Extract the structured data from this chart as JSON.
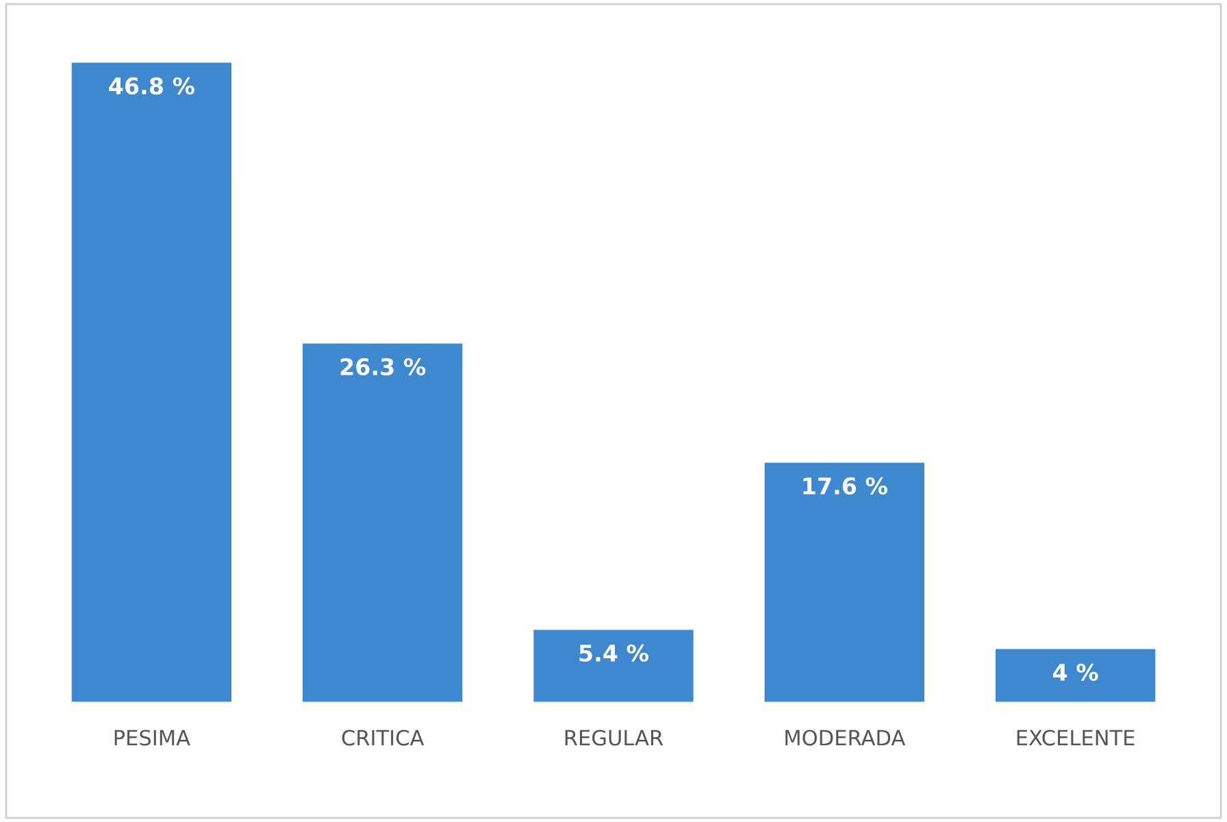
{
  "chart_data": {
    "type": "bar",
    "categories": [
      "PESIMA",
      "CRITICA",
      "REGULAR",
      "MODERADA",
      "EXCELENTE"
    ],
    "values": [
      46.8,
      26.3,
      5.4,
      17.6,
      4
    ],
    "value_labels": [
      "46.8 %",
      "26.3 %",
      "5.4 %",
      "17.6 %",
      "4 %"
    ],
    "color": "#3d88cf",
    "grid": false,
    "legend": false
  }
}
